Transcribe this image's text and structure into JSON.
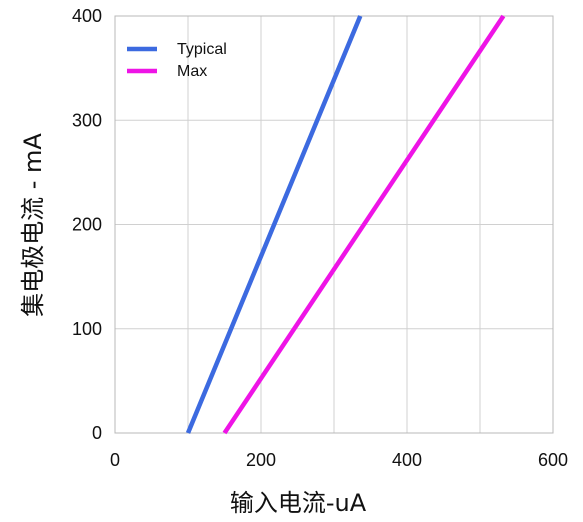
{
  "chart_data": {
    "type": "line",
    "title": "",
    "xlabel": "输入电流-uA",
    "ylabel": "集电极电流 - mA",
    "xlim": [
      0,
      600
    ],
    "ylim": [
      0,
      400
    ],
    "xticks": [
      0,
      200,
      400,
      600
    ],
    "yticks": [
      0,
      100,
      200,
      300,
      400
    ],
    "grid": true,
    "legend_position": "top-left",
    "series": [
      {
        "name": "Typical",
        "color": "#3c6ae0",
        "x": [
          100,
          336
        ],
        "y": [
          0,
          400
        ]
      },
      {
        "name": "Max",
        "color": "#ee14e6",
        "x": [
          150,
          532
        ],
        "y": [
          0,
          400
        ]
      }
    ]
  }
}
